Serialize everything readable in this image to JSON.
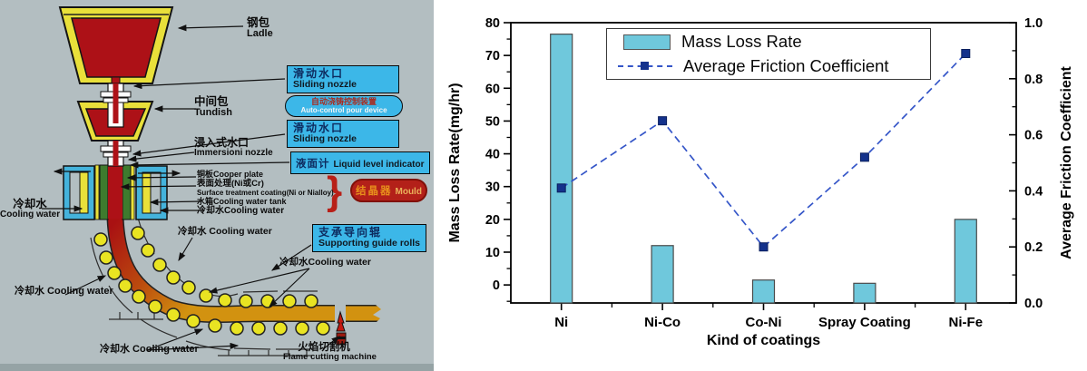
{
  "diagram": {
    "ladle": {
      "zh": "钢包",
      "en": "Ladle"
    },
    "tundish": {
      "zh": "中间包",
      "en": "Tundish"
    },
    "sliding_nozzle_1": {
      "zh": "滑动水口",
      "en": "Sliding nozzle"
    },
    "auto_control": {
      "zh": "自动浇铸控制装置",
      "en": "Auto-control pour device"
    },
    "sliding_nozzle_2": {
      "zh": "滑动水口",
      "en": "Sliding nozzle"
    },
    "immersion_nozzle": {
      "zh": "浸入式水口",
      "en": "Immersioni nozzle"
    },
    "liquid_level": {
      "zh": "液面计",
      "en": "Liquid level indicator"
    },
    "copper_plate": "铜板Cooper plate",
    "surface_treatment_zh": "表面处理(Ni或Cr)",
    "surface_treatment_en": "Surface treatment coating(Ni or Nialloy)",
    "water_tank": "水箱Cooling water tank",
    "cooling_water_mould": "冷却水Cooling water",
    "mould": {
      "zh": "结晶器",
      "en": "Mould"
    },
    "cooling_water_left": {
      "zh": "冷却水",
      "en": "Cooling water"
    },
    "cooling_water_mid": "冷却水 Cooling water",
    "guide_rolls": {
      "zh": "支承导向辊",
      "en": "Supporting guide rolls"
    },
    "cooling_water_right": "冷却水Cooling water",
    "cooling_water_lower_left": "冷却水 Cooling water",
    "cooling_water_bottom": "冷却水 Cooling water",
    "flame_cutter": {
      "zh": "火焰切割机",
      "en": "Flame cutting machine"
    }
  },
  "chart_data": {
    "type": "bar+line",
    "categories": [
      "Ni",
      "Ni-Co",
      "Co-Ni",
      "Spray Coating",
      "Ni-Fe"
    ],
    "series": [
      {
        "name": "Mass Loss Rate",
        "type": "bar",
        "axis": "left",
        "values": [
          76.5,
          12,
          1.5,
          0.5,
          20
        ]
      },
      {
        "name": "Average Friction Coefficient",
        "type": "line",
        "axis": "right",
        "values": [
          0.41,
          0.65,
          0.2,
          0.52,
          0.89
        ]
      }
    ],
    "xlabel": "Kind of coatings",
    "ylabel_left": "Mass Loss Rate(mg/hr)",
    "ylabel_right": "Average Friction Coefficient",
    "ylim_left": [
      -5.5,
      80
    ],
    "yticks_left": [
      0,
      10,
      20,
      30,
      40,
      50,
      60,
      70,
      80
    ],
    "ylim_right": [
      0.0,
      1.0
    ],
    "yticks_right": [
      0.0,
      0.2,
      0.4,
      0.6,
      0.8,
      1.0
    ],
    "legend_position": "top-center",
    "grid": false,
    "bar_color": "#6fc8dc",
    "bar_stroke": "#4a4a4a",
    "line_color": "#3556c8",
    "marker_color": "#14328c"
  }
}
